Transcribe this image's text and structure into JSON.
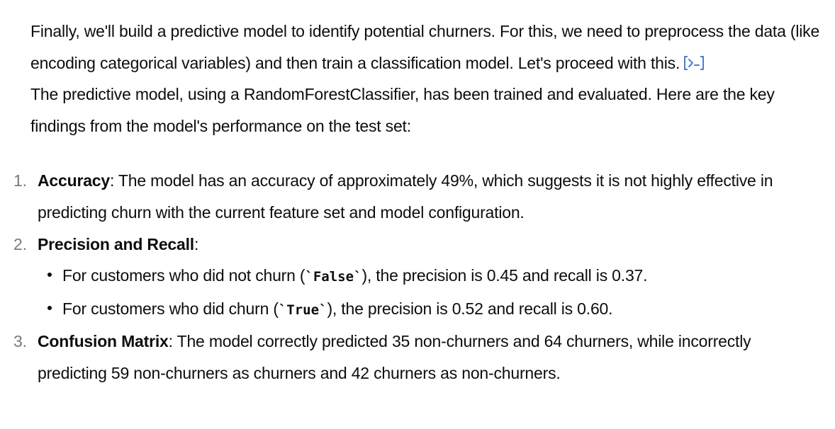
{
  "intro": {
    "paragraph1": "Finally, we'll build a predictive model to identify potential churners. For this, we need to preprocess the data (like encoding categorical variables) and then train a classification model. Let's proceed with this.",
    "code_icon": "code-interpreter-icon",
    "paragraph2": "The predictive model, using a RandomForestClassifier, has been trained and evaluated. Here are the key findings from the model's performance on the test set:"
  },
  "findings": [
    {
      "number": "1.",
      "title": "Accuracy",
      "text": ": The model has an accuracy of approximately 49%, which suggests it is not highly effective in predicting churn with the current feature set and model configuration."
    },
    {
      "number": "2.",
      "title": "Precision and Recall",
      "text": ":",
      "sub_items": [
        {
          "before": "For customers who did not churn (",
          "code": "`False`",
          "after": "), the precision is 0.45 and recall is 0.37."
        },
        {
          "before": "For customers who did churn (",
          "code": "`True`",
          "after": "), the precision is 0.52 and recall is 0.60."
        }
      ]
    },
    {
      "number": "3.",
      "title": "Confusion Matrix",
      "text": ": The model correctly predicted 35 non-churners and 64 churners, while incorrectly predicting 59 non-churners as churners and 42 churners as non-churners."
    }
  ],
  "colors": {
    "text": "#0d0d0d",
    "list_number": "#7a7a7a",
    "code_icon": "#4a7fd4"
  }
}
